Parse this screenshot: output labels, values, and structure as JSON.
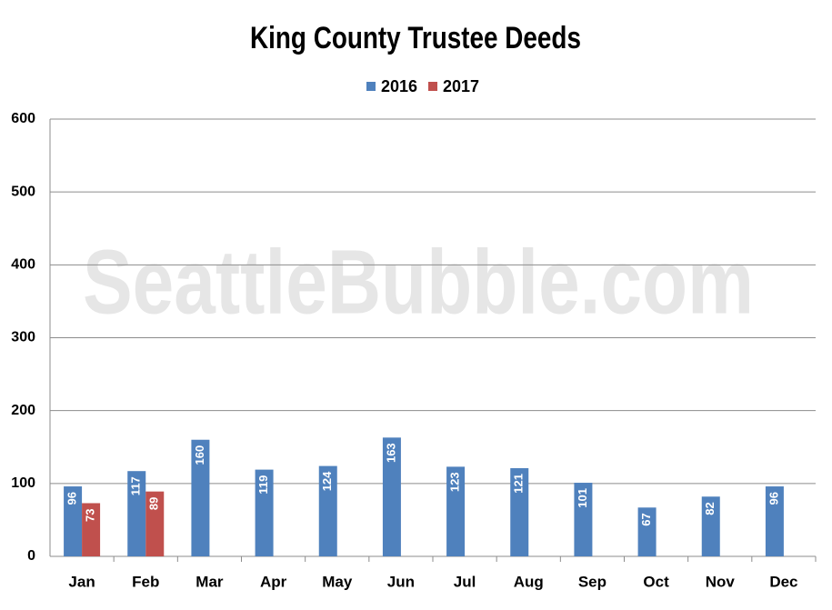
{
  "chart_data": {
    "type": "bar",
    "title": "King County Trustee Deeds",
    "watermark": "SeattleBubble.com",
    "categories": [
      "Jan",
      "Feb",
      "Mar",
      "Apr",
      "May",
      "Jun",
      "Jul",
      "Aug",
      "Sep",
      "Oct",
      "Nov",
      "Dec"
    ],
    "series": [
      {
        "name": "2016",
        "color": "#4f81bd",
        "values": [
          96,
          117,
          160,
          119,
          124,
          163,
          123,
          121,
          101,
          67,
          82,
          96
        ]
      },
      {
        "name": "2017",
        "color": "#c0504d",
        "values": [
          73,
          89,
          null,
          null,
          null,
          null,
          null,
          null,
          null,
          null,
          null,
          null
        ]
      }
    ],
    "ylim": [
      0,
      600
    ],
    "yticks": [
      0,
      100,
      200,
      300,
      400,
      500,
      600
    ],
    "grid": true,
    "legend": "top"
  }
}
